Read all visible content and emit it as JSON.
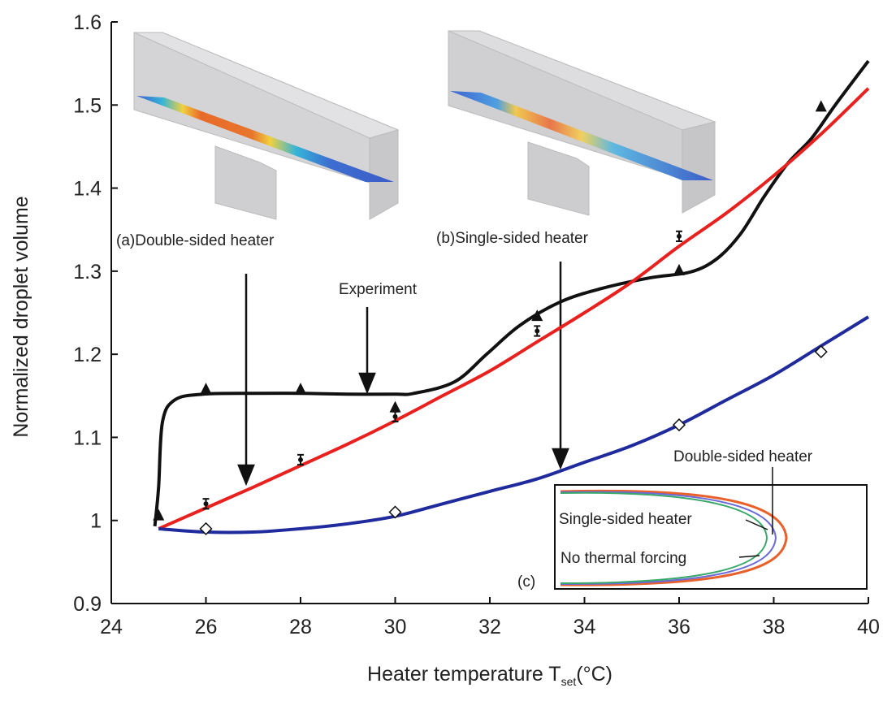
{
  "chart_data": {
    "type": "line",
    "ylabel": "Normalized droplet volume",
    "xlabel": "Heater temperature T",
    "xlabel_subscript": "set",
    "xlabel_unit": "(°C)",
    "xlim": [
      24,
      40
    ],
    "xticks": [
      24,
      26,
      28,
      30,
      32,
      34,
      36,
      38,
      40
    ],
    "ylim": [
      0.9,
      1.6
    ],
    "yticks": [
      0.9,
      1,
      1.1,
      1.2,
      1.3,
      1.4,
      1.5,
      1.6
    ],
    "annotations": [
      "(a)Double-sided heater",
      "(b)Single-sided heater",
      "Experiment",
      "Double-sided heater",
      "Single-sided heater",
      "No thermal forcing",
      "(c)"
    ],
    "series": [
      {
        "style": "line",
        "color": "#111111",
        "x": [
          24.92,
          25.0,
          25.08,
          25.34,
          25.94,
          27,
          28,
          29,
          30,
          30.4,
          31.26,
          31.95,
          32.64,
          33.49,
          34.35,
          35.38,
          36.24,
          36.8,
          37.3,
          37.8,
          38.3,
          38.8,
          39.3,
          40
        ],
        "values": [
          0.993,
          1.04,
          1.118,
          1.145,
          1.152,
          1.153,
          1.153,
          1.152,
          1.152,
          1.153,
          1.167,
          1.201,
          1.235,
          1.263,
          1.279,
          1.292,
          1.299,
          1.315,
          1.345,
          1.39,
          1.43,
          1.46,
          1.5,
          1.553
        ]
      },
      {
        "style": "line",
        "color": "#e8201e",
        "x": [
          25,
          26,
          27,
          28,
          29,
          30,
          31,
          32,
          33,
          34,
          35,
          36,
          37,
          38,
          39,
          40
        ],
        "values": [
          0.99,
          1.015,
          1.04,
          1.066,
          1.092,
          1.12,
          1.15,
          1.18,
          1.215,
          1.25,
          1.287,
          1.33,
          1.37,
          1.415,
          1.465,
          1.52
        ]
      },
      {
        "style": "line",
        "color": "#1f2a9c",
        "x": [
          25,
          26,
          27,
          28,
          29,
          30,
          31,
          32,
          33,
          34,
          35,
          36,
          37,
          38,
          39,
          40
        ],
        "values": [
          0.99,
          0.986,
          0.986,
          0.99,
          0.996,
          1.005,
          1.02,
          1.035,
          1.05,
          1.07,
          1.09,
          1.115,
          1.145,
          1.175,
          1.21,
          1.245
        ]
      },
      {
        "style": "triangle",
        "color": "#111111",
        "x": [
          25,
          26,
          28,
          30,
          33,
          36,
          39
        ],
        "values": [
          1.005,
          1.157,
          1.157,
          1.135,
          1.245,
          1.3,
          1.497
        ]
      },
      {
        "style": "errorbar",
        "color": "#111111",
        "x": [
          26,
          28,
          30,
          33,
          36
        ],
        "values": [
          1.02,
          1.073,
          1.125,
          1.228,
          1.342
        ],
        "errors": [
          0.006,
          0.006,
          0.006,
          0.006,
          0.006
        ]
      },
      {
        "style": "diamond",
        "color": "#111111",
        "x": [
          26,
          30,
          36,
          39
        ],
        "values": [
          0.99,
          1.01,
          1.115,
          1.203
        ]
      }
    ]
  }
}
